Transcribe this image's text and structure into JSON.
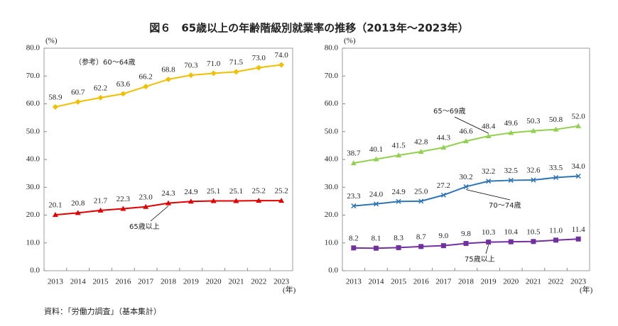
{
  "title": "図６　65歳以上の年齢階級別就業率の推移（2013年～2023年）",
  "source": "資料：「労働力調査」（基本集計）",
  "chart_data": [
    {
      "type": "line",
      "y_unit": "(%)",
      "x_unit": "(年)",
      "categories": [
        "2013",
        "2014",
        "2015",
        "2016",
        "2017",
        "2018",
        "2019",
        "2020",
        "2021",
        "2022",
        "2023"
      ],
      "ylim": [
        0,
        80
      ],
      "yticks": [
        {
          "value": 0,
          "label": "0.0"
        },
        {
          "value": 10,
          "label": "10.0"
        },
        {
          "value": 20,
          "label": "20.0"
        },
        {
          "value": 30,
          "label": "30.0"
        },
        {
          "value": 40,
          "label": "40.0"
        },
        {
          "value": 50,
          "label": "50.0"
        },
        {
          "value": 60,
          "label": "60.0"
        },
        {
          "value": 70,
          "label": "70.0"
        },
        {
          "value": 80,
          "label": "80.0"
        }
      ],
      "series": [
        {
          "name": "（参考）60～64歳",
          "color": "#f2bf00",
          "marker": "diamond",
          "values": [
            58.9,
            60.7,
            62.2,
            63.6,
            66.2,
            68.8,
            70.3,
            71.0,
            71.5,
            73.0,
            74.0
          ],
          "value_labels": [
            "58.9",
            "60.7",
            "62.2",
            "63.6",
            "66.2",
            "68.8",
            "70.3",
            "71.0",
            "71.5",
            "73.0",
            "74.0"
          ]
        },
        {
          "name": "65歳以上",
          "color": "#e00000",
          "marker": "triangle",
          "values": [
            20.1,
            20.8,
            21.7,
            22.3,
            23.0,
            24.3,
            24.9,
            25.1,
            25.1,
            25.2,
            25.2
          ],
          "value_labels": [
            "20.1",
            "20.8",
            "21.7",
            "22.3",
            "23.0",
            "24.3",
            "24.9",
            "25.1",
            "25.1",
            "25.2",
            "25.2"
          ]
        }
      ]
    },
    {
      "type": "line",
      "y_unit": "(%)",
      "x_unit": "(年)",
      "categories": [
        "2013",
        "2014",
        "2015",
        "2016",
        "2017",
        "2018",
        "2019",
        "2020",
        "2021",
        "2022",
        "2023"
      ],
      "ylim": [
        0,
        80
      ],
      "yticks": [
        {
          "value": 0,
          "label": "0.0"
        },
        {
          "value": 10,
          "label": "10.0"
        },
        {
          "value": 20,
          "label": "20.0"
        },
        {
          "value": 30,
          "label": "30.0"
        },
        {
          "value": 40,
          "label": "40.0"
        },
        {
          "value": 50,
          "label": "50.0"
        },
        {
          "value": 60,
          "label": "60.0"
        },
        {
          "value": 70,
          "label": "70.0"
        },
        {
          "value": 80,
          "label": "80.0"
        }
      ],
      "series": [
        {
          "name": "65～69歳",
          "color": "#92d050",
          "marker": "triangle",
          "values": [
            38.7,
            40.1,
            41.5,
            42.8,
            44.3,
            46.6,
            48.4,
            49.6,
            50.3,
            50.8,
            52.0
          ],
          "value_labels": [
            "38.7",
            "40.1",
            "41.5",
            "42.8",
            "44.3",
            "46.6",
            "48.4",
            "49.6",
            "50.3",
            "50.8",
            "52.0"
          ]
        },
        {
          "name": "70～74歳",
          "color": "#2e75b6",
          "marker": "x",
          "values": [
            23.3,
            24.0,
            24.9,
            25.0,
            27.2,
            30.2,
            32.2,
            32.5,
            32.6,
            33.5,
            34.0
          ],
          "value_labels": [
            "23.3",
            "24.0",
            "24.9",
            "25.0",
            "27.2",
            "30.2",
            "32.2",
            "32.5",
            "32.6",
            "33.5",
            "34.0"
          ]
        },
        {
          "name": "75歳以上",
          "color": "#7030a0",
          "marker": "square",
          "values": [
            8.2,
            8.1,
            8.3,
            8.7,
            9.0,
            9.8,
            10.3,
            10.4,
            10.5,
            11.0,
            11.4
          ],
          "value_labels": [
            "8.2",
            "8.1",
            "8.3",
            "8.7",
            "9.0",
            "9.8",
            "10.3",
            "10.4",
            "10.5",
            "11.0",
            "11.4"
          ]
        }
      ]
    }
  ]
}
